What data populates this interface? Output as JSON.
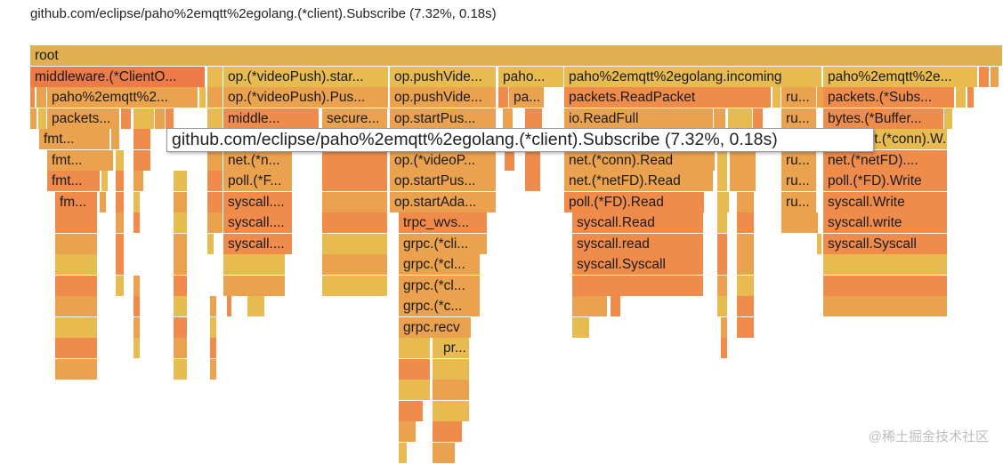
{
  "header": {
    "title": "github.com/eclipse/paho%2emqtt%2egolang.(*client).Subscribe (7.32%, 0.18s)"
  },
  "tooltip": {
    "text": "github.com/eclipse/paho%2emqtt%2egolang.(*client).Subscribe (7.32%, 0.18s)"
  },
  "watermark": {
    "text": "@稀土掘金技术社区"
  },
  "colors": {
    "root": "#e0b050",
    "orange": "#ef8c4c",
    "yellow": "#e8bb51",
    "amber": "#eba24e",
    "red": "#ec7b47"
  },
  "flamegraph": {
    "rows": [
      [
        "root"
      ],
      [
        "middleware.(*ClientO...",
        "op.(*videoPush).star...",
        "op.pushVide...",
        "paho...",
        "paho%2emqtt%2egolang.incoming",
        "paho%2emqtt%2e..."
      ],
      [
        "paho%2emqtt%2...",
        "op.(*videoPush).Pus...",
        "op.pushVide...",
        "pa...",
        "packets.ReadPacket",
        "ru...",
        "packets.(*Subs..."
      ],
      [
        "packets...",
        "middle...",
        "secure...",
        "op.startPus...",
        "io.ReadFull",
        "ru...",
        "bytes.(*Buffer..."
      ],
      [
        "fmt...",
        "net.(*conn).W..."
      ],
      [
        "fmt...",
        "net.(*n...",
        "op.(*videoP...",
        "net.(*conn).Read",
        "ru...",
        "net.(*netFD)...."
      ],
      [
        "fmt...",
        "poll.(*F...",
        "op.startPus...",
        "net.(*netFD).Read",
        "ru...",
        "poll.(*FD).Write"
      ],
      [
        "fm...",
        "syscall....",
        "op.startAda...",
        "poll.(*FD).Read",
        "ru...",
        "syscall.Write"
      ],
      [
        "syscall....",
        "trpc_wvs...",
        "syscall.Read",
        "syscall.write"
      ],
      [
        "syscall....",
        "grpc.(*cli...",
        "syscall.read",
        "syscall.Syscall"
      ],
      [
        "grpc.(*cl...",
        "syscall.Syscall"
      ],
      [
        "grpc.(*cl..."
      ],
      [
        "grpc.(*c..."
      ],
      [
        "grpc.recv"
      ],
      [
        "pr..."
      ]
    ]
  }
}
